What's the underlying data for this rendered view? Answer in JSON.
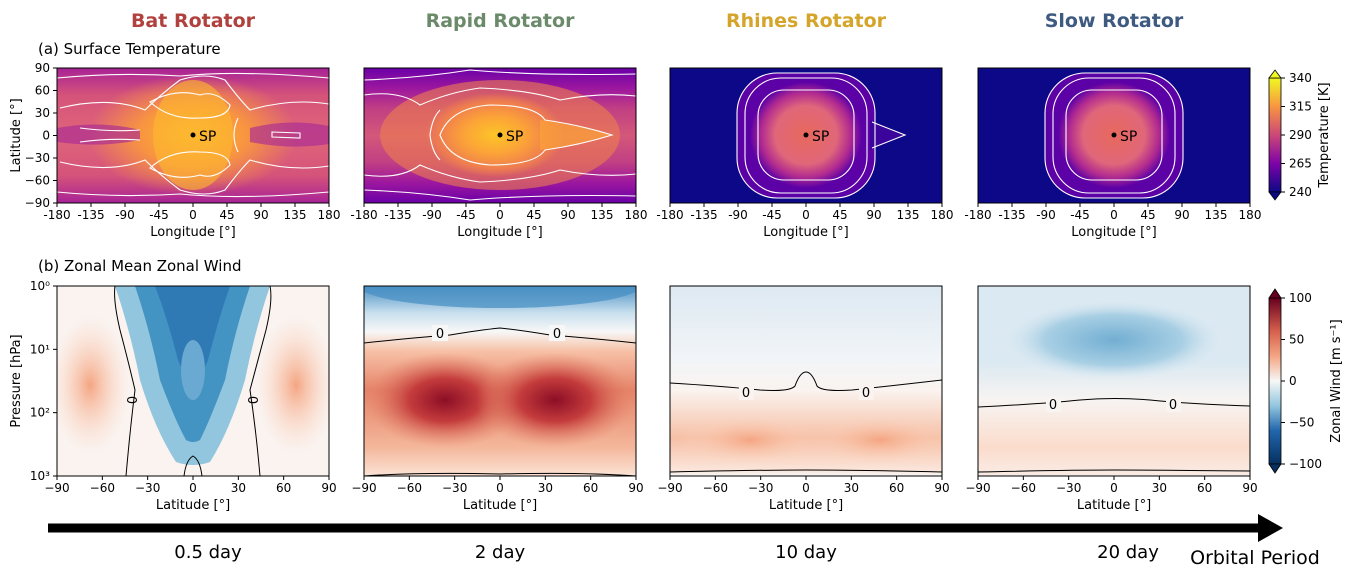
{
  "columns": [
    {
      "title": "Bat Rotator",
      "color": "#b0413e",
      "period": "0.5 day"
    },
    {
      "title": "Rapid Rotator",
      "color": "#6a8a6a",
      "period": "2 day"
    },
    {
      "title": "Rhines Rotator",
      "color": "#d4a52a",
      "period": "10 day"
    },
    {
      "title": "Slow Rotator",
      "color": "#3e5a80",
      "period": "20 day"
    }
  ],
  "row_labels": {
    "a": "(a) Surface Temperature",
    "b": "(b) Zonal Mean Zonal Wind"
  },
  "arrow_label": "Orbital Period",
  "marker_label": "SP",
  "chart_data": [
    {
      "type": "heatmap",
      "panel": "a",
      "xlabel": "Longitude [°]",
      "ylabel": "Latitude [°]",
      "xlim": [
        -180,
        180
      ],
      "ylim": [
        -90,
        90
      ],
      "x_ticks": [
        "-180",
        "-135",
        "-90",
        "-45",
        "0",
        "45",
        "90",
        "135",
        "180"
      ],
      "y_ticks": [
        "−90",
        "−60",
        "−30",
        "0",
        "30",
        "60",
        "90"
      ],
      "colorbar": {
        "label": "Temperature [K]",
        "ticks": [
          "240",
          "265",
          "290",
          "315",
          "340"
        ],
        "range": [
          240,
          340
        ],
        "colormap": "plasma"
      },
      "substellar_point": {
        "lon": 0,
        "lat": 0
      },
      "panels": [
        {
          "name": "Bat Rotator",
          "dayside_peak_K": 320,
          "nightside_K": 275
        },
        {
          "name": "Rapid Rotator",
          "dayside_peak_K": 325,
          "nightside_K": 265
        },
        {
          "name": "Rhines Rotator",
          "dayside_peak_K": 300,
          "nightside_K": 240
        },
        {
          "name": "Slow Rotator",
          "dayside_peak_K": 300,
          "nightside_K": 240
        }
      ]
    },
    {
      "type": "heatmap",
      "panel": "b",
      "xlabel": "Latitude [°]",
      "ylabel": "Pressure [hPa]",
      "xlim": [
        -90,
        90
      ],
      "ylim": [
        1000,
        1
      ],
      "yscale": "log",
      "x_ticks": [
        "−90",
        "−60",
        "−30",
        "0",
        "30",
        "60",
        "90"
      ],
      "y_ticks": [
        "10⁰",
        "10¹",
        "10²",
        "10³"
      ],
      "colorbar": {
        "label": "Zonal Wind [m s⁻¹]",
        "ticks": [
          "100",
          "50",
          "0",
          "−50",
          "−100"
        ],
        "range": [
          -100,
          100
        ],
        "colormap": "RdBu_r"
      },
      "contour_label": "0",
      "panels": [
        {
          "name": "Bat Rotator",
          "equatorial_jet_min_ms": -75,
          "midlatitude_max_ms": 25
        },
        {
          "name": "Rapid Rotator",
          "upper_level_min_ms": -50,
          "jet_max_ms": 100,
          "jet_latitudes": [
            -40,
            40
          ],
          "jet_pressure_hPa": 60
        },
        {
          "name": "Rhines Rotator",
          "upper_level_min_ms": -10,
          "jet_max_ms": 35
        },
        {
          "name": "Slow Rotator",
          "upper_level_min_ms": -35,
          "lower_level_max_ms": 15
        }
      ]
    }
  ]
}
